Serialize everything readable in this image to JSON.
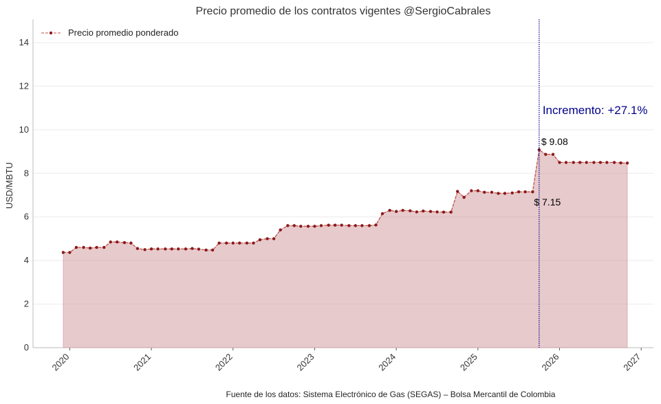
{
  "chart_data": {
    "type": "line",
    "title": "Precio promedio de los contratos vigentes @SergioCabrales",
    "y_label": "USD/MBTU",
    "footnote": "Fuente de los datos: Sistema Electrónico de Gas (SEGAS) – Bolsa Mercantil de Colombia",
    "annotation": "Incremento: +27.1%",
    "vline_x": 2025.75,
    "vline_color": "#00008b",
    "legend": "upper left",
    "grid": true,
    "x": [
      2019.92,
      2020.0,
      2020.08,
      2020.17,
      2020.25,
      2020.33,
      2020.42,
      2020.5,
      2020.58,
      2020.67,
      2020.75,
      2020.83,
      2020.92,
      2021.0,
      2021.08,
      2021.17,
      2021.25,
      2021.33,
      2021.42,
      2021.5,
      2021.58,
      2021.67,
      2021.75,
      2021.83,
      2021.92,
      2022.0,
      2022.08,
      2022.17,
      2022.25,
      2022.33,
      2022.42,
      2022.5,
      2022.58,
      2022.67,
      2022.75,
      2022.83,
      2022.92,
      2023.0,
      2023.08,
      2023.17,
      2023.25,
      2023.33,
      2023.42,
      2023.5,
      2023.58,
      2023.67,
      2023.75,
      2023.83,
      2023.92,
      2024.0,
      2024.08,
      2024.17,
      2024.25,
      2024.33,
      2024.42,
      2024.5,
      2024.58,
      2024.67,
      2024.75,
      2024.83,
      2024.92,
      2025.0,
      2025.08,
      2025.17,
      2025.25,
      2025.33,
      2025.42,
      2025.5,
      2025.58,
      2025.67,
      2025.75,
      2025.83,
      2025.92,
      2026.0,
      2026.08,
      2026.17,
      2026.25,
      2026.33,
      2026.42,
      2026.5,
      2026.58,
      2026.67,
      2026.75,
      2026.83
    ],
    "series": [
      {
        "name": "Precio promedio ponderado",
        "color": "#c0504d",
        "marker_color": "#8b1a1a",
        "fill_color": "#cf9599",
        "values": [
          4.37,
          4.37,
          4.6,
          4.6,
          4.57,
          4.6,
          4.6,
          4.85,
          4.85,
          4.82,
          4.8,
          4.55,
          4.5,
          4.53,
          4.53,
          4.53,
          4.53,
          4.53,
          4.53,
          4.55,
          4.52,
          4.48,
          4.48,
          4.8,
          4.8,
          4.8,
          4.8,
          4.8,
          4.8,
          4.95,
          5.0,
          5.0,
          5.4,
          5.6,
          5.6,
          5.57,
          5.57,
          5.57,
          5.6,
          5.62,
          5.62,
          5.62,
          5.6,
          5.6,
          5.6,
          5.6,
          5.63,
          6.15,
          6.3,
          6.25,
          6.3,
          6.28,
          6.23,
          6.27,
          6.25,
          6.23,
          6.22,
          6.22,
          7.17,
          6.9,
          7.2,
          7.2,
          7.13,
          7.13,
          7.08,
          7.08,
          7.1,
          7.15,
          7.15,
          7.15,
          9.08,
          8.87,
          8.87,
          8.5,
          8.5,
          8.5,
          8.5,
          8.5,
          8.5,
          8.5,
          8.5,
          8.5,
          8.48,
          8.47
        ],
        "value_labels": [
          null,
          null,
          null,
          null,
          null,
          null,
          null,
          null,
          null,
          null,
          null,
          null,
          null,
          null,
          null,
          null,
          null,
          null,
          null,
          null,
          null,
          null,
          null,
          null,
          null,
          null,
          null,
          null,
          null,
          null,
          null,
          null,
          null,
          null,
          null,
          null,
          null,
          null,
          null,
          null,
          null,
          null,
          null,
          null,
          null,
          null,
          null,
          null,
          null,
          null,
          null,
          null,
          null,
          null,
          null,
          null,
          null,
          null,
          null,
          null,
          null,
          null,
          null,
          null,
          null,
          null,
          null,
          null,
          null,
          "$ 7.15",
          "$ 9.08",
          null,
          null,
          null,
          null,
          null,
          null,
          null,
          null,
          null,
          null,
          null,
          null,
          null
        ]
      }
    ],
    "xlim": [
      2019.55,
      2027.15
    ],
    "xticks": [
      2020,
      2021,
      2022,
      2023,
      2024,
      2025,
      2026,
      2027
    ],
    "ylim": [
      0,
      15.07
    ],
    "yticks": [
      0,
      2,
      4,
      6,
      8,
      10,
      12,
      14
    ]
  }
}
